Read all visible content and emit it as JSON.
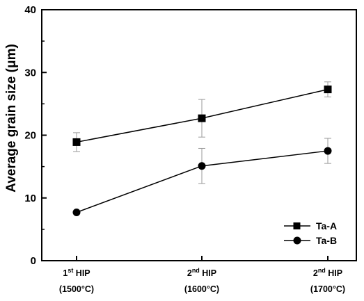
{
  "chart_data": {
    "type": "line",
    "categories": [
      {
        "line1": "1",
        "sup": "st",
        "rest": " HIP",
        "line2": "(1500°C)"
      },
      {
        "line1": "2",
        "sup": "nd",
        "rest": " HIP",
        "line2": "(1600°C)"
      },
      {
        "line1": "2",
        "sup": "nd",
        "rest": " HIP",
        "line2": "(1700°C)"
      }
    ],
    "ylabel": "Average grain size (μm)",
    "ylim": [
      0,
      40
    ],
    "yticks": [
      "0",
      "10",
      "20",
      "30",
      "40"
    ],
    "grid": false,
    "legend_position": "bottom-right",
    "series": [
      {
        "name": "Ta-A",
        "marker": "square",
        "values": [
          18.9,
          22.7,
          27.3
        ],
        "err": [
          1.5,
          3.0,
          1.2
        ]
      },
      {
        "name": "Ta-B",
        "marker": "circle",
        "values": [
          7.7,
          15.1,
          17.5
        ],
        "err": [
          0.0,
          2.8,
          2.0
        ]
      }
    ]
  }
}
